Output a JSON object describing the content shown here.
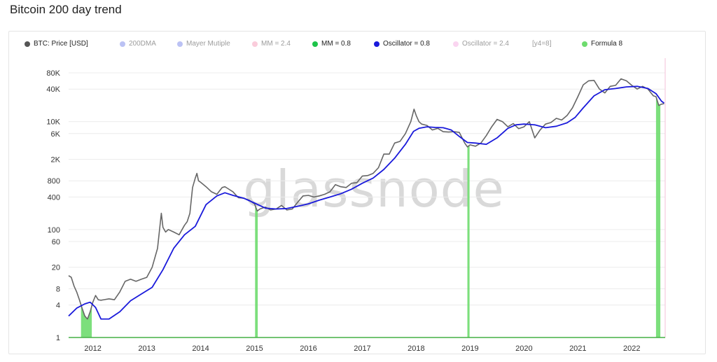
{
  "page": {
    "title": "Bitcoin 200 day trend"
  },
  "watermark": "glassnode",
  "legend": [
    {
      "label": "BTC: Price [USD]",
      "color": "#555555",
      "muted": false
    },
    {
      "label": "200DMA",
      "color": "#6b7ae8",
      "muted": true
    },
    {
      "label": "Mayer Mutiple",
      "color": "#6b7ae8",
      "muted": true
    },
    {
      "label": "MM = 2.4",
      "color": "#f48fb1",
      "muted": true
    },
    {
      "label": "MM = 0.8",
      "color": "#1ec44a",
      "muted": false
    },
    {
      "label": "Oscillator = 0.8",
      "color": "#1a1adb",
      "muted": false
    },
    {
      "label": "Oscillator = 2.4",
      "color": "#f5a3e0",
      "muted": true
    },
    {
      "label": "[y4=8]",
      "color": "",
      "muted": true
    },
    {
      "label": "Formula 8",
      "color": "#6edc6e",
      "muted": false
    }
  ],
  "chart_data": {
    "type": "line",
    "title": "Bitcoin 200 day trend",
    "y_scale": "log",
    "ylim": [
      1,
      150000
    ],
    "y_ticks": [
      "80K",
      "40K",
      "10K",
      "6K",
      "2K",
      "800",
      "400",
      "100",
      "60",
      "20",
      "8",
      "4",
      "1"
    ],
    "y_tick_values": [
      80000,
      40000,
      10000,
      6000,
      2000,
      800,
      400,
      100,
      60,
      20,
      8,
      4,
      1
    ],
    "xlim": [
      2011.55,
      2022.62
    ],
    "x_ticks": [
      "2012",
      "2013",
      "2014",
      "2015",
      "2016",
      "2017",
      "2018",
      "2019",
      "2020",
      "2021",
      "2022"
    ],
    "colors": {
      "price": "#666666",
      "dma": "#1a1adb",
      "formula": "#6edc6e",
      "axis": "#45b045"
    },
    "series": [
      {
        "name": "BTC: Price [USD]",
        "x": [
          2011.55,
          2011.6,
          2011.65,
          2011.7,
          2011.75,
          2011.8,
          2011.85,
          2011.9,
          2011.95,
          2012.0,
          2012.05,
          2012.1,
          2012.15,
          2012.2,
          2012.3,
          2012.4,
          2012.5,
          2012.6,
          2012.7,
          2012.8,
          2012.9,
          2013.0,
          2013.1,
          2013.2,
          2013.27,
          2013.3,
          2013.35,
          2013.4,
          2013.5,
          2013.6,
          2013.7,
          2013.75,
          2013.8,
          2013.85,
          2013.9,
          2013.93,
          2013.96,
          2014.0,
          2014.1,
          2014.2,
          2014.3,
          2014.4,
          2014.45,
          2014.5,
          2014.6,
          2014.7,
          2014.8,
          2014.9,
          2015.0,
          2015.05,
          2015.1,
          2015.2,
          2015.3,
          2015.4,
          2015.5,
          2015.6,
          2015.7,
          2015.8,
          2015.9,
          2016.0,
          2016.1,
          2016.2,
          2016.3,
          2016.4,
          2016.5,
          2016.6,
          2016.7,
          2016.8,
          2016.9,
          2017.0,
          2017.1,
          2017.2,
          2017.3,
          2017.4,
          2017.5,
          2017.6,
          2017.7,
          2017.8,
          2017.9,
          2017.96,
          2018.0,
          2018.05,
          2018.1,
          2018.2,
          2018.3,
          2018.4,
          2018.5,
          2018.6,
          2018.7,
          2018.8,
          2018.9,
          2018.95,
          2019.0,
          2019.1,
          2019.2,
          2019.3,
          2019.4,
          2019.5,
          2019.6,
          2019.7,
          2019.8,
          2019.9,
          2020.0,
          2020.1,
          2020.2,
          2020.3,
          2020.4,
          2020.5,
          2020.6,
          2020.7,
          2020.8,
          2020.9,
          2021.0,
          2021.1,
          2021.2,
          2021.3,
          2021.4,
          2021.5,
          2021.6,
          2021.7,
          2021.8,
          2021.9,
          2022.0,
          2022.1,
          2022.2,
          2022.3,
          2022.4,
          2022.45,
          2022.5,
          2022.55,
          2022.6
        ],
        "values": [
          14,
          13,
          9,
          7,
          5,
          3.5,
          2.5,
          2.2,
          3,
          4.5,
          6,
          5,
          4.9,
          5,
          5.2,
          5,
          7,
          11,
          12,
          11,
          12,
          13,
          20,
          45,
          200,
          110,
          90,
          100,
          90,
          80,
          120,
          140,
          200,
          600,
          900,
          1100,
          800,
          750,
          620,
          500,
          450,
          600,
          620,
          580,
          500,
          390,
          380,
          350,
          300,
          220,
          240,
          260,
          230,
          240,
          280,
          230,
          240,
          320,
          420,
          430,
          400,
          420,
          450,
          500,
          680,
          620,
          600,
          720,
          740,
          980,
          1000,
          1100,
          1400,
          2500,
          2500,
          4000,
          4300,
          6000,
          10000,
          17000,
          13000,
          10000,
          9000,
          8500,
          7000,
          7500,
          6500,
          6400,
          6500,
          6300,
          4000,
          3400,
          3700,
          3500,
          4000,
          5500,
          8000,
          11000,
          10000,
          8000,
          9200,
          7400,
          8000,
          10000,
          5000,
          7000,
          9000,
          9600,
          11500,
          10700,
          13000,
          18000,
          29000,
          48000,
          57000,
          58000,
          40000,
          34000,
          45000,
          47000,
          62000,
          57000,
          47000,
          40000,
          45000,
          40000,
          30000,
          29000,
          20000,
          21000,
          21500
        ]
      },
      {
        "name": "Oscillator = 0.8",
        "x": [
          2011.55,
          2011.7,
          2011.85,
          2011.95,
          2012.05,
          2012.15,
          2012.3,
          2012.5,
          2012.7,
          2012.9,
          2013.1,
          2013.3,
          2013.5,
          2013.7,
          2013.9,
          2014.1,
          2014.3,
          2014.45,
          2014.6,
          2014.8,
          2015.0,
          2015.2,
          2015.4,
          2015.6,
          2015.8,
          2016.0,
          2016.2,
          2016.4,
          2016.6,
          2016.8,
          2017.0,
          2017.2,
          2017.4,
          2017.6,
          2017.8,
          2017.95,
          2018.05,
          2018.2,
          2018.35,
          2018.5,
          2018.65,
          2018.8,
          2018.95,
          2019.1,
          2019.3,
          2019.5,
          2019.7,
          2019.85,
          2020.0,
          2020.2,
          2020.4,
          2020.6,
          2020.8,
          2020.95,
          2021.1,
          2021.3,
          2021.5,
          2021.7,
          2021.9,
          2022.1,
          2022.3,
          2022.45,
          2022.55,
          2022.6
        ],
        "values": [
          2.5,
          3.5,
          4.2,
          4.5,
          3.6,
          2.2,
          2.2,
          3,
          4.8,
          6.4,
          8.5,
          18,
          45,
          80,
          115,
          290,
          420,
          480,
          430,
          380,
          310,
          250,
          240,
          245,
          270,
          300,
          350,
          400,
          460,
          560,
          720,
          900,
          1300,
          2100,
          3800,
          6600,
          7500,
          8000,
          7800,
          7700,
          7000,
          5300,
          4100,
          4000,
          3800,
          5000,
          7500,
          8700,
          9000,
          8700,
          7700,
          8200,
          9500,
          12000,
          18000,
          30000,
          39000,
          41000,
          44000,
          45000,
          41000,
          33000,
          24000,
          22000
        ]
      }
    ],
    "formula8_periods": [
      [
        2011.78,
        2011.98
      ],
      [
        2015.01,
        2015.06
      ],
      [
        2018.95,
        2018.99
      ],
      [
        2022.45,
        2022.53
      ]
    ]
  }
}
